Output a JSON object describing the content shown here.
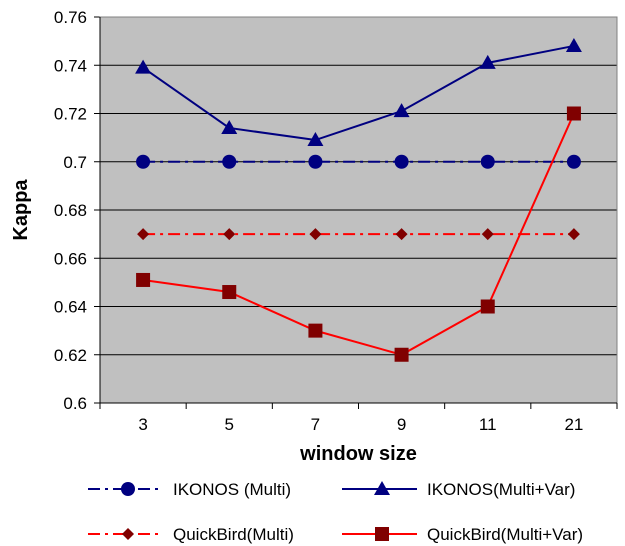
{
  "chart_data": {
    "type": "line",
    "title": "",
    "xlabel": "window size",
    "ylabel": "Kappa",
    "categories": [
      "3",
      "5",
      "7",
      "9",
      "11",
      "21"
    ],
    "ylim": [
      0.6,
      0.76
    ],
    "yticks": [
      "0.6",
      "0.62",
      "0.64",
      "0.66",
      "0.68",
      "0.7",
      "0.72",
      "0.74",
      "0.76"
    ],
    "grid": true,
    "plot_background": "#c0c0c0",
    "legend_position": "bottom",
    "series": [
      {
        "name": "IKONOS (Multi)",
        "values": [
          0.7,
          0.7,
          0.7,
          0.7,
          0.7,
          0.7
        ],
        "color": "#000080",
        "line_style": "dash-dot",
        "marker": "circle"
      },
      {
        "name": "IKONOS(Multi+Var)",
        "values": [
          0.739,
          0.714,
          0.709,
          0.721,
          0.741,
          0.748
        ],
        "color": "#000080",
        "line_style": "solid",
        "marker": "triangle"
      },
      {
        "name": "QuickBird(Multi)",
        "values": [
          0.67,
          0.67,
          0.67,
          0.67,
          0.67,
          0.67
        ],
        "color": "#ff0000",
        "marker_color": "#800000",
        "line_style": "dash-dot",
        "marker": "diamond"
      },
      {
        "name": "QuickBird(Multi+Var)",
        "values": [
          0.651,
          0.646,
          0.63,
          0.62,
          0.64,
          0.72
        ],
        "color": "#ff0000",
        "marker_color": "#800000",
        "line_style": "solid",
        "marker": "square"
      }
    ]
  }
}
